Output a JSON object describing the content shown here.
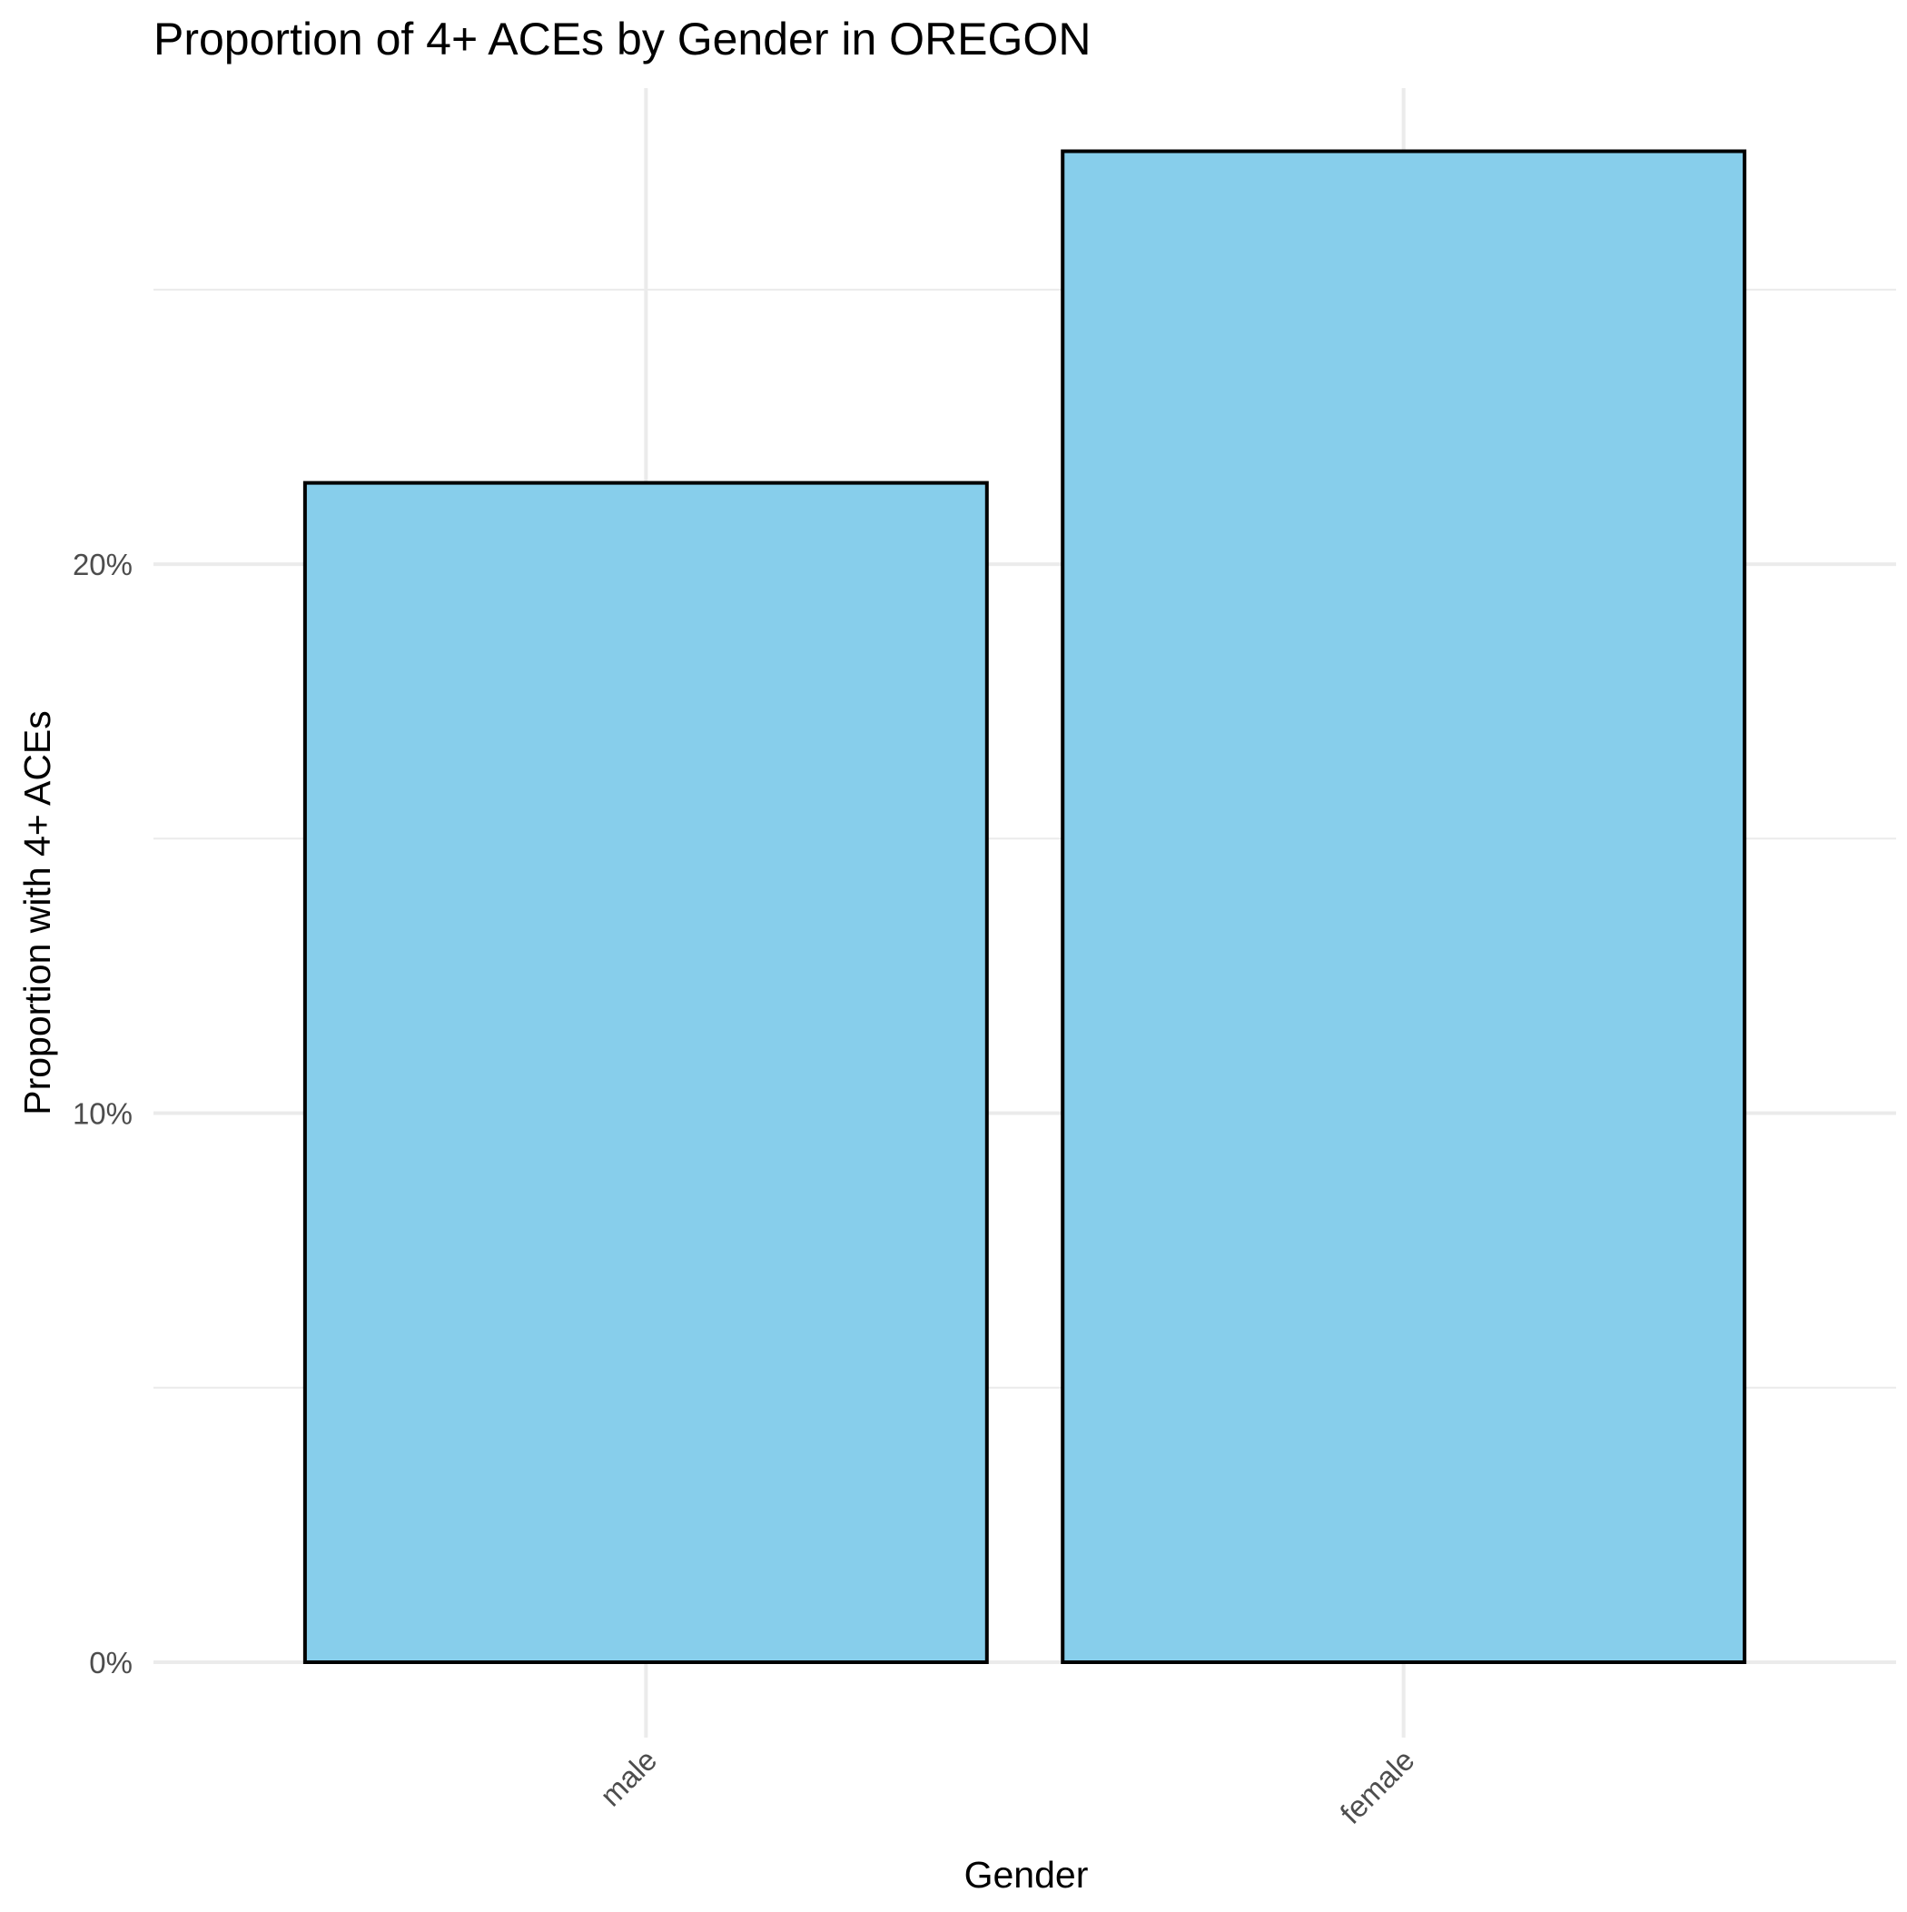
{
  "chart_data": {
    "type": "bar",
    "title": "Proportion of 4+ ACEs by Gender in OREGON",
    "xlabel": "Gender",
    "ylabel": "Proportion with 4+ ACEs",
    "categories": [
      "male",
      "female"
    ],
    "values": [
      0.2148,
      0.2752
    ],
    "ylim": [
      0,
      0.2867
    ],
    "y_ticks": [
      {
        "value": 0,
        "label": "0%"
      },
      {
        "value": 0.1,
        "label": "10%"
      },
      {
        "value": 0.2,
        "label": "20%"
      }
    ],
    "y_minor_ticks": [
      0.05,
      0.15,
      0.25
    ],
    "grid": true,
    "legend": "none",
    "colors": {
      "bar_fill": "#87CEEB",
      "bar_outline": "#000000",
      "grid": "#ebebeb",
      "background": "#ffffff"
    }
  }
}
